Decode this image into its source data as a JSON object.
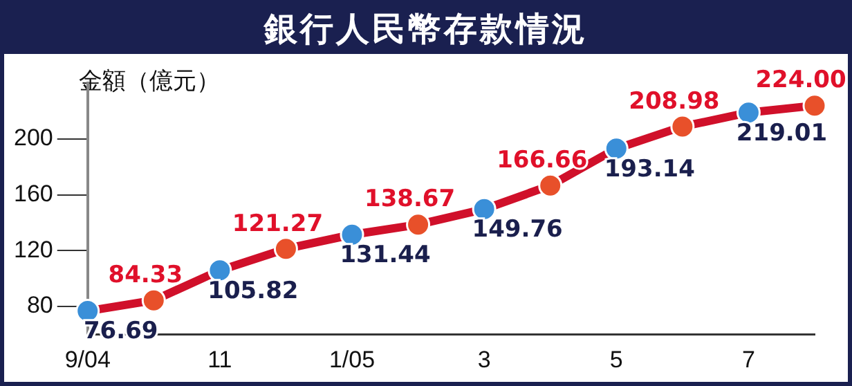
{
  "chart_data": {
    "type": "line",
    "title": "銀行人民幣存款情況",
    "ylabel": "金額（億元）",
    "categories": [
      "9/04",
      null,
      "11",
      null,
      "1/05",
      null,
      "3",
      null,
      "5",
      null,
      "7",
      null
    ],
    "series": [
      {
        "color": "#d0102a",
        "values": [
          76.69,
          84.33,
          105.82,
          121.27,
          131.44,
          138.67,
          149.76,
          166.66,
          193.14,
          208.98,
          219.01,
          224.0
        ],
        "value_labels": [
          "76.69",
          "84.33",
          "105.82",
          "121.27",
          "131.44",
          "138.67",
          "149.76",
          "166.66",
          "193.14",
          "208.98",
          "219.01",
          "224.00"
        ],
        "colors": [
          "#3a8fd8",
          "#e8502a",
          "#3a8fd8",
          "#e8502a",
          "#3a8fd8",
          "#e8502a",
          "#3a8fd8",
          "#e8502a",
          "#3a8fd8",
          "#e8502a",
          "#3a8fd8",
          "#e8502a"
        ]
      }
    ],
    "ylim": [
      60,
      240
    ],
    "yticks": [
      80,
      120,
      160,
      200
    ],
    "marker": "circle",
    "legend": false,
    "grid": false
  }
}
